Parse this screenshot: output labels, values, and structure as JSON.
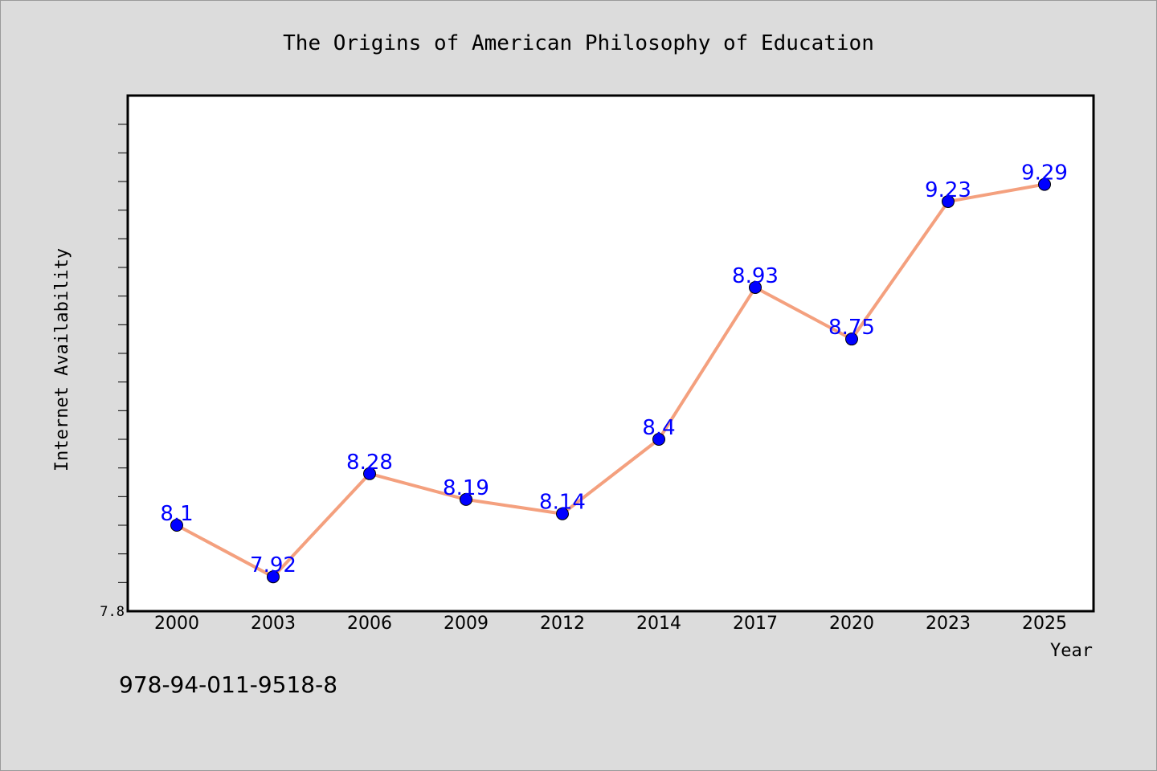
{
  "chart_data": {
    "type": "line",
    "title": "The Origins of American Philosophy of Education",
    "xlabel": "Year",
    "ylabel": "Internet Availability",
    "categories": [
      "2000",
      "2003",
      "2006",
      "2009",
      "2012",
      "2014",
      "2017",
      "2020",
      "2023",
      "2025"
    ],
    "series": [
      {
        "values": [
          8.1,
          7.92,
          8.28,
          8.19,
          8.14,
          8.4,
          8.93,
          8.75,
          9.23,
          9.29
        ],
        "data_labels": [
          "8.1",
          "7.92",
          "8.28",
          "8.19",
          "8.14",
          "8.4",
          "8.93",
          "8.75",
          "9.23",
          "9.29"
        ]
      }
    ],
    "ylim": [
      7.8,
      9.6
    ],
    "ytick_labels": [
      "7.8"
    ],
    "grid": false,
    "legend": "none",
    "colors": {
      "line": "#f4a07e",
      "marker": "#0000ff",
      "data_label": "#0000ff",
      "plot_background": "#ffffff",
      "figure_background": "#dcdcdc"
    }
  },
  "footer": {
    "isbn": "978-94-011-9518-8"
  }
}
